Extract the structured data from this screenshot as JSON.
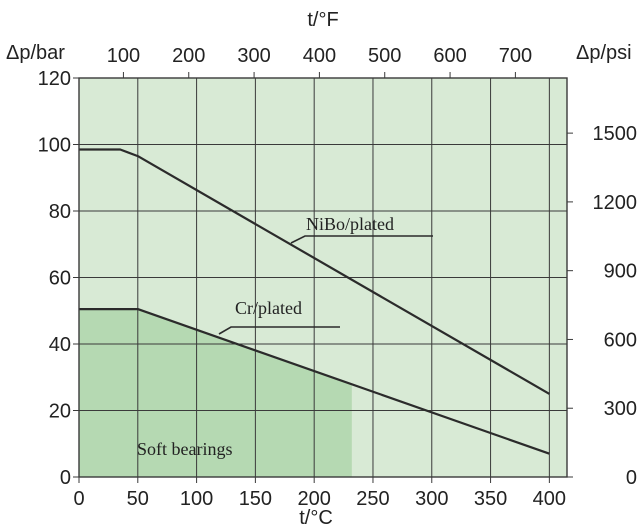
{
  "chart_data": {
    "type": "line",
    "x_bottom": {
      "label": "t/°C",
      "ticks": [
        0,
        50,
        100,
        150,
        200,
        250,
        300,
        350,
        400
      ],
      "range": [
        0,
        415
      ]
    },
    "x_top": {
      "label": "t/°F",
      "ticks": [
        100,
        200,
        300,
        400,
        500,
        600,
        700
      ]
    },
    "y_left": {
      "label": "Δp/bar",
      "ticks": [
        0,
        20,
        40,
        60,
        80,
        100,
        120
      ],
      "range": [
        0,
        120
      ]
    },
    "y_right": {
      "label": "Δp/psi",
      "ticks": [
        0,
        300,
        600,
        900,
        1200,
        1500
      ]
    },
    "grid": true,
    "colors": {
      "background": "#d8ead5",
      "region": "#b5d9b2",
      "grid": "#3a3a3a",
      "line": "#2b2b2b"
    },
    "series": [
      {
        "name": "NiBo/plated",
        "x": [
          0,
          35,
          50,
          400
        ],
        "y": [
          98.5,
          98.5,
          96.5,
          25
        ]
      },
      {
        "name": "Cr/plated",
        "x": [
          0,
          50,
          400
        ],
        "y": [
          50.5,
          50.5,
          7
        ]
      }
    ],
    "regions": [
      {
        "name": "Soft bearings",
        "x": [
          0,
          50,
          232,
          232,
          0
        ],
        "y": [
          50.5,
          50.5,
          28,
          0,
          0
        ]
      }
    ]
  }
}
